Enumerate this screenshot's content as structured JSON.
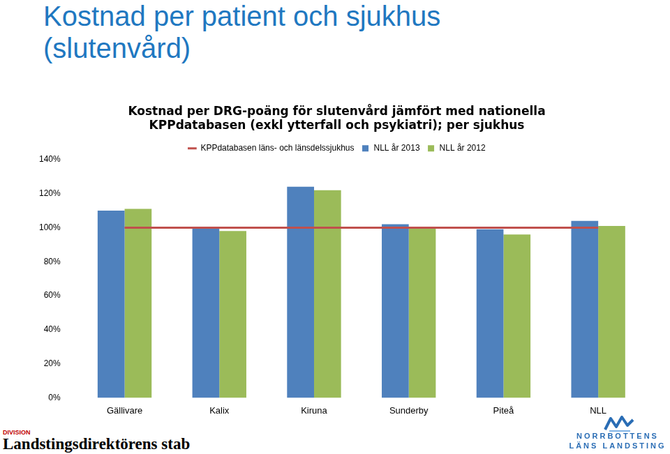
{
  "slide": {
    "title": [
      "Kostnad per patient och sjukhus",
      "(slutenvård)"
    ],
    "footer_division": "DIVISION",
    "footer_unit": "Landstingsdirektörens stab",
    "logo_line1": "NORRBOTTENS",
    "logo_line2": "LÄNS LANDSTING"
  },
  "chart_data": {
    "type": "bar",
    "title": [
      "Kostnad per DRG-poäng för slutenvård jämfört med nationella",
      "KPPdatabasen (exkl ytterfall och psykiatri); per sjukhus"
    ],
    "categories": [
      "Gällivare",
      "Kalix",
      "Kiruna",
      "Sunderby",
      "Piteå",
      "NLL"
    ],
    "series": [
      {
        "name": "NLL år 2013",
        "color": "#4f81bd",
        "values": [
          110,
          100,
          124,
          102,
          99,
          104
        ]
      },
      {
        "name": "NLL år 2012",
        "color": "#9bbb59",
        "values": [
          111,
          98,
          122,
          100,
          96,
          101
        ]
      },
      {
        "name": "KPPdatabasen läns- och länsdelssjukhus",
        "color": "#c0504d",
        "type": "line",
        "marker": "none",
        "line_style": "solid",
        "values": [
          100,
          100,
          100,
          100,
          100,
          100
        ]
      }
    ],
    "ylim": [
      0,
      140
    ],
    "yticks": [
      {
        "value": 0,
        "label": "0%"
      },
      {
        "value": 20,
        "label": "20%"
      },
      {
        "value": 40,
        "label": "40%"
      },
      {
        "value": 60,
        "label": "60%"
      },
      {
        "value": 80,
        "label": "80%"
      },
      {
        "value": 100,
        "label": "100%"
      },
      {
        "value": 120,
        "label": "120%"
      },
      {
        "value": 140,
        "label": "140%"
      }
    ],
    "grid": false,
    "legend": "top"
  }
}
